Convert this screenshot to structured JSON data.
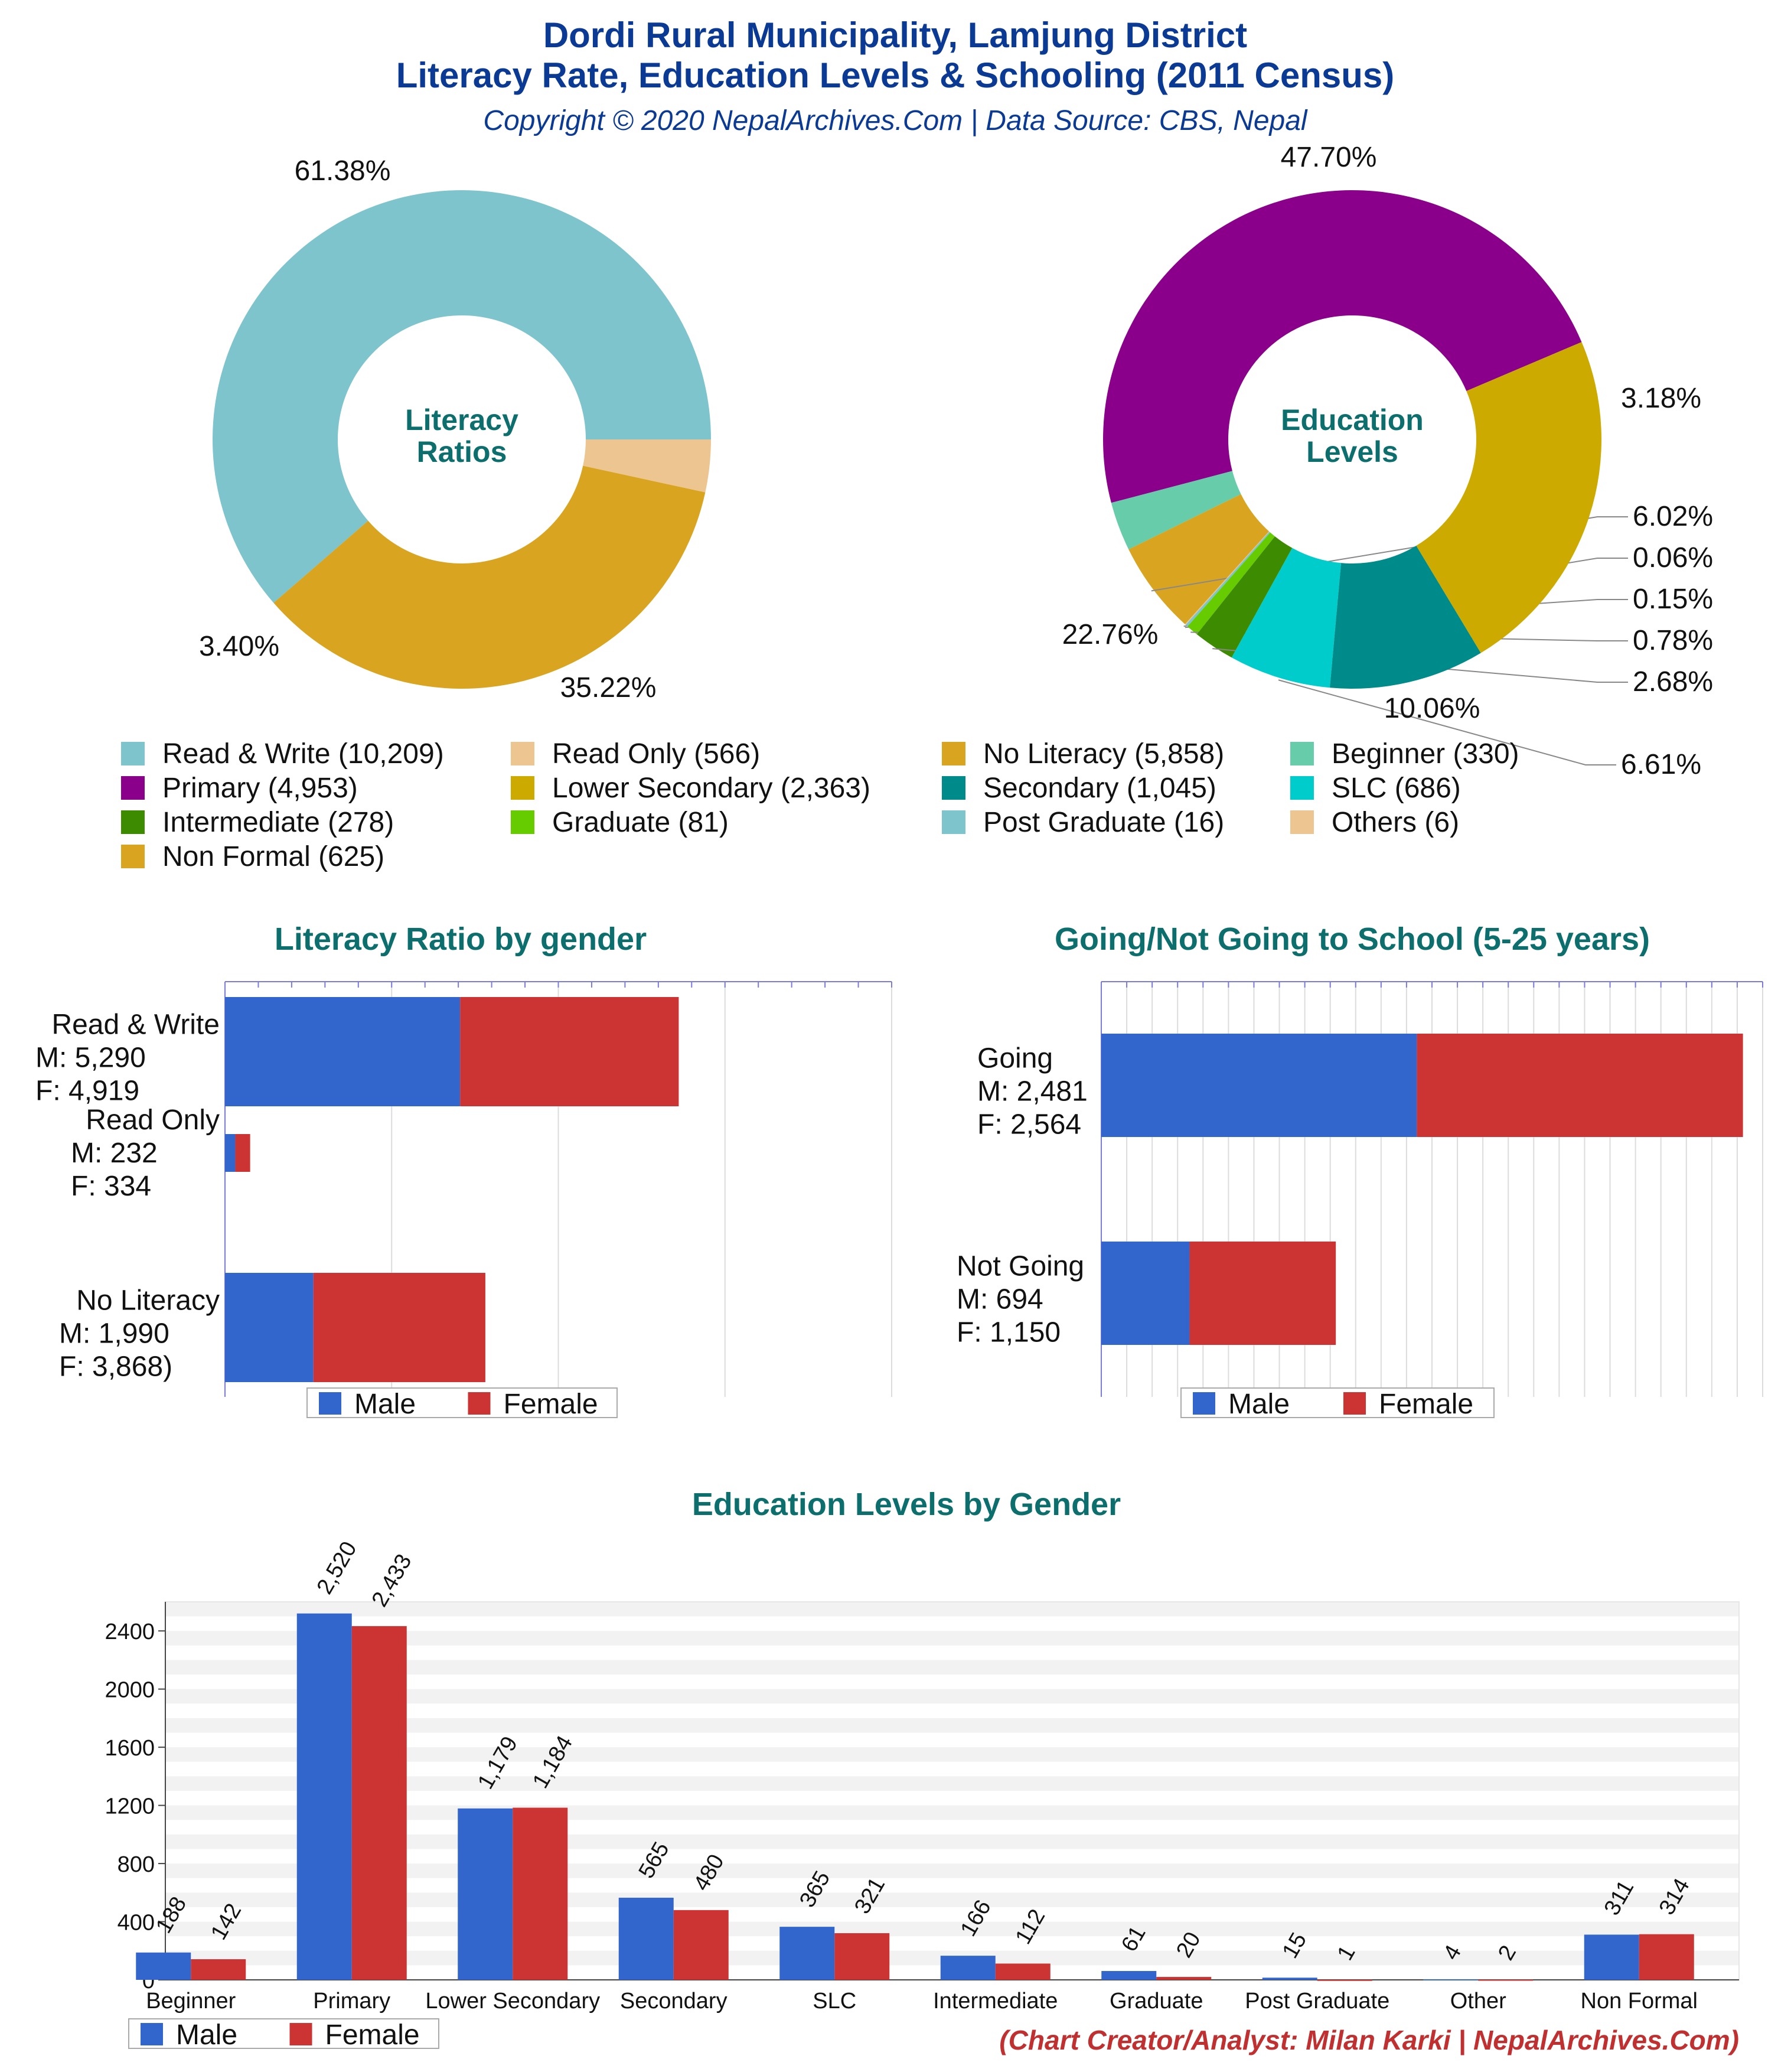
{
  "header": {
    "title_line1": "Dordi Rural Municipality, Lamjung District",
    "title_line2": "Literacy Rate, Education Levels & Schooling (2011 Census)",
    "copyright": "Copyright © 2020 NepalArchives.Com | Data Source: CBS, Nepal"
  },
  "colors": {
    "male": "#3366cc",
    "female": "#cc3333",
    "title": "#0b3a94",
    "section_title": "#0d6e6e"
  },
  "legend": {
    "items": [
      {
        "label": "Read & Write (10,209)",
        "color": "#7ec4cc"
      },
      {
        "label": "Read Only (566)",
        "color": "#edc591"
      },
      {
        "label": "No Literacy (5,858)",
        "color": "#d9a520"
      },
      {
        "label": "Beginner (330)",
        "color": "#66ccaa"
      },
      {
        "label": "Primary (4,953)",
        "color": "#8b008b"
      },
      {
        "label": "Lower Secondary (2,363)",
        "color": "#ccaa00"
      },
      {
        "label": "Secondary (1,045)",
        "color": "#008b8b"
      },
      {
        "label": "SLC (686)",
        "color": "#00cccc"
      },
      {
        "label": "Intermediate (278)",
        "color": "#3d8b00"
      },
      {
        "label": "Graduate (81)",
        "color": "#66cc00"
      },
      {
        "label": "Post Graduate (16)",
        "color": "#7ec4cc"
      },
      {
        "label": "Others (6)",
        "color": "#edc591"
      },
      {
        "label": "Non Formal (625)",
        "color": "#d9a520"
      }
    ]
  },
  "gender_legend": {
    "male": "Male",
    "female": "Female"
  },
  "footer": {
    "credit": "(Chart Creator/Analyst: Milan Karki | NepalArchives.Com)"
  },
  "chart_data": [
    {
      "type": "pie",
      "center_label_line1": "Literacy",
      "center_label_line2": "Ratios",
      "slices": [
        {
          "label": "Read & Write",
          "value": 10209,
          "pct_label": "61.38%",
          "color": "#7ec4cc"
        },
        {
          "label": "No Literacy",
          "value": 5858,
          "pct_label": "35.22%",
          "color": "#d9a520"
        },
        {
          "label": "Read Only",
          "value": 566,
          "pct_label": "3.40%",
          "color": "#edc591"
        }
      ]
    },
    {
      "type": "pie",
      "center_label_line1": "Education",
      "center_label_line2": "Levels",
      "slices": [
        {
          "label": "Primary",
          "value": 4953,
          "pct_label": "47.70%",
          "color": "#8b008b"
        },
        {
          "label": "Beginner",
          "value": 330,
          "pct_label": "3.18%",
          "color": "#66ccaa"
        },
        {
          "label": "Non Formal",
          "value": 625,
          "pct_label": "6.02%",
          "color": "#d9a520"
        },
        {
          "label": "Others",
          "value": 6,
          "pct_label": "0.06%",
          "color": "#edc591"
        },
        {
          "label": "Post Graduate",
          "value": 16,
          "pct_label": "0.15%",
          "color": "#7ec4cc"
        },
        {
          "label": "Graduate",
          "value": 81,
          "pct_label": "0.78%",
          "color": "#66cc00"
        },
        {
          "label": "Intermediate",
          "value": 278,
          "pct_label": "2.68%",
          "color": "#3d8b00"
        },
        {
          "label": "SLC",
          "value": 686,
          "pct_label": "6.61%",
          "color": "#00cccc"
        },
        {
          "label": "Secondary",
          "value": 1045,
          "pct_label": "10.06%",
          "color": "#008b8b"
        },
        {
          "label": "Lower Secondary",
          "value": 2363,
          "pct_label": "22.76%",
          "color": "#ccaa00"
        }
      ]
    },
    {
      "type": "bar",
      "orientation": "horizontal",
      "stacked": true,
      "title": "Literacy Ratio by gender",
      "xlim": [
        0,
        15000
      ],
      "categories": [
        {
          "label": "Read & Write",
          "male_label": "M: 5,290",
          "female_label": "F: 4,919"
        },
        {
          "label": "Read Only",
          "male_label": "M: 232",
          "female_label": "F: 334"
        },
        {
          "label": "No Literacy",
          "male_label": "M: 1,990",
          "female_label": "F: 3,868)"
        }
      ],
      "series": [
        {
          "name": "Male",
          "values": [
            5290,
            232,
            1990
          ]
        },
        {
          "name": "Female",
          "values": [
            4919,
            334,
            3868
          ]
        }
      ]
    },
    {
      "type": "bar",
      "orientation": "horizontal",
      "stacked": true,
      "title": "Going/Not Going to School (5-25 years)",
      "xlim": [
        0,
        5200
      ],
      "categories": [
        {
          "label": "Going",
          "male_label": "M: 2,481",
          "female_label": "F: 2,564"
        },
        {
          "label": "Not Going",
          "male_label": "M: 694",
          "female_label": "F: 1,150"
        }
      ],
      "series": [
        {
          "name": "Male",
          "values": [
            2481,
            694
          ]
        },
        {
          "name": "Female",
          "values": [
            2564,
            1150
          ]
        }
      ]
    },
    {
      "type": "bar",
      "orientation": "vertical",
      "title": "Education Levels by Gender",
      "ylim": [
        0,
        2600
      ],
      "yticks": [
        "0",
        "400",
        "800",
        "1200",
        "1600",
        "2000",
        "2400"
      ],
      "categories": [
        "Beginner",
        "Primary",
        "Lower Secondary",
        "Secondary",
        "SLC",
        "Intermediate",
        "Graduate",
        "Post Graduate",
        "Other",
        "Non Formal"
      ],
      "series": [
        {
          "name": "Male",
          "values": [
            188,
            2520,
            1179,
            565,
            365,
            166,
            61,
            15,
            4,
            311
          ],
          "labels": [
            "188",
            "2,520",
            "1,179",
            "565",
            "365",
            "166",
            "61",
            "15",
            "4",
            "311"
          ]
        },
        {
          "name": "Female",
          "values": [
            142,
            2433,
            1184,
            480,
            321,
            112,
            20,
            1,
            2,
            314
          ],
          "labels": [
            "142",
            "2,433",
            "1,184",
            "480",
            "321",
            "112",
            "20",
            "1",
            "2",
            "314"
          ]
        }
      ]
    }
  ]
}
